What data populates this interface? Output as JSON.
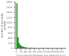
{
  "chart_data": {
    "type": "histogram",
    "xlabel": "Time interval between two detections (s)",
    "ylabel": "Number of inactivity\nperiods",
    "color": "#228B22",
    "xlim": [
      -5,
      220
    ],
    "ylim": [
      0,
      1800
    ],
    "xticks": [
      0,
      20,
      40,
      60,
      80,
      100,
      120,
      140,
      160,
      180,
      200
    ],
    "yticks": [
      0,
      200,
      400,
      600,
      800,
      1000,
      1200,
      1400,
      1600,
      1800
    ],
    "bins": [
      0,
      5,
      10,
      15,
      20,
      25,
      30,
      35,
      40,
      45,
      50,
      55,
      60,
      70,
      80,
      90,
      100,
      120,
      140,
      160,
      180,
      200,
      220
    ],
    "values": [
      1750,
      420,
      200,
      130,
      90,
      70,
      55,
      45,
      35,
      28,
      22,
      18,
      25,
      18,
      14,
      10,
      15,
      10,
      8,
      6,
      5,
      4
    ]
  }
}
